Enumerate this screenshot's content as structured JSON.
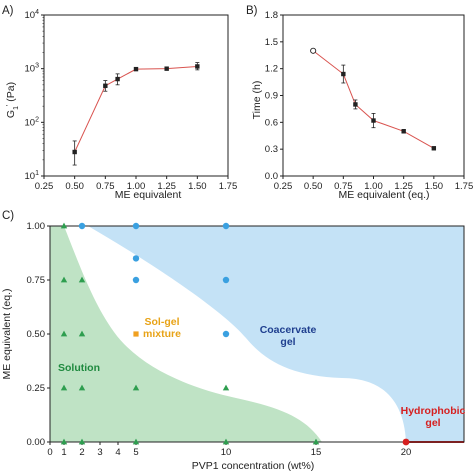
{
  "colors": {
    "line_red": "#d9534f",
    "point": "#222222",
    "solution_fill": "#bfe3c5",
    "coacervate_fill": "#c4e2f6",
    "green_marker": "#2e9e4f",
    "blue_marker": "#3aa0e0",
    "orange_marker": "#f0a020",
    "red_marker": "#d62020",
    "solution_text": "#1f8a3f",
    "solgel_text": "#e8a317",
    "coacervate_text": "#1f3f8f",
    "hydrophobic_text": "#d62020"
  },
  "chart_data": [
    {
      "panel": "A)",
      "type": "line",
      "scale_y": "log",
      "xlabel": "ME equivalent",
      "ylabel_main": "G",
      "ylabel_sub": "1",
      "ylabel_sup": "'",
      "ylabel_unit": " (Pa)",
      "xlim": [
        0.25,
        1.75
      ],
      "ylim": [
        10,
        10000
      ],
      "xticks": [
        "0.25",
        "0.50",
        "0.75",
        "1.00",
        "1.25",
        "1.50",
        "1.75"
      ],
      "yticks": [
        {
          "base": "10",
          "exp": "1",
          "value": 10
        },
        {
          "base": "10",
          "exp": "2",
          "value": 100
        },
        {
          "base": "10",
          "exp": "3",
          "value": 1000
        },
        {
          "base": "10",
          "exp": "4",
          "value": 10000
        }
      ],
      "x": [
        0.5,
        0.75,
        0.85,
        1.0,
        1.25,
        1.5
      ],
      "y": [
        28,
        480,
        640,
        980,
        1000,
        1100
      ],
      "err_low": [
        16,
        380,
        500,
        920,
        950,
        950
      ],
      "err_high": [
        45,
        600,
        800,
        1050,
        1060,
        1300
      ]
    },
    {
      "panel": "B)",
      "type": "line",
      "xlabel": "ME equivalent (eq.)",
      "ylabel": "Time (h)",
      "xlim": [
        0.25,
        1.75
      ],
      "ylim": [
        0.0,
        1.8
      ],
      "xticks": [
        "0.25",
        "0.50",
        "0.75",
        "1.00",
        "1.25",
        "1.50",
        "1.75"
      ],
      "yticks": [
        "0.0",
        "0.3",
        "0.6",
        "0.9",
        "1.2",
        "1.5",
        "1.8"
      ],
      "x": [
        0.5,
        0.75,
        0.85,
        1.0,
        1.25,
        1.5
      ],
      "y": [
        1.4,
        1.14,
        0.8,
        0.62,
        0.5,
        0.31
      ],
      "err": [
        0.0,
        0.1,
        0.05,
        0.08,
        0.02,
        0.01
      ],
      "open_first_point": true
    },
    {
      "panel": "C)",
      "type": "scatter",
      "xlabel": "PVP1 concentration (wt%)",
      "ylabel": "ME equivalent (eq.)",
      "xlim": [
        0,
        25
      ],
      "ylim": [
        0.0,
        1.0
      ],
      "xticks": [
        "0",
        "1",
        "2",
        "3",
        "4",
        "5",
        "10",
        "15",
        "20"
      ],
      "yticks": [
        "0.00",
        "0.25",
        "0.50",
        "0.75",
        "1.00"
      ],
      "regions": {
        "solution": "Solution",
        "solgel": [
          "Sol-gel",
          "mixture"
        ],
        "coacervate": [
          "Coacervate",
          "gel"
        ],
        "hydrophobic": [
          "Hydrophobic",
          "gel"
        ]
      },
      "points": {
        "solution": [
          [
            1,
            0
          ],
          [
            2,
            0
          ],
          [
            5,
            0
          ],
          [
            10,
            0
          ],
          [
            15,
            0
          ],
          [
            1,
            0.25
          ],
          [
            2,
            0.25
          ],
          [
            5,
            0.25
          ],
          [
            10,
            0.25
          ],
          [
            1,
            0.5
          ],
          [
            2,
            0.5
          ],
          [
            1,
            0.75
          ],
          [
            2,
            0.75
          ],
          [
            1,
            1.0
          ]
        ],
        "solgel": [
          [
            5,
            0.5
          ]
        ],
        "coacervate": [
          [
            2,
            1.0
          ],
          [
            5,
            1.0
          ],
          [
            10,
            1.0
          ],
          [
            5,
            0.85
          ],
          [
            5,
            0.75
          ],
          [
            10,
            0.75
          ],
          [
            10,
            0.5
          ]
        ],
        "hydrophobic": [
          [
            20,
            0
          ]
        ]
      }
    }
  ]
}
